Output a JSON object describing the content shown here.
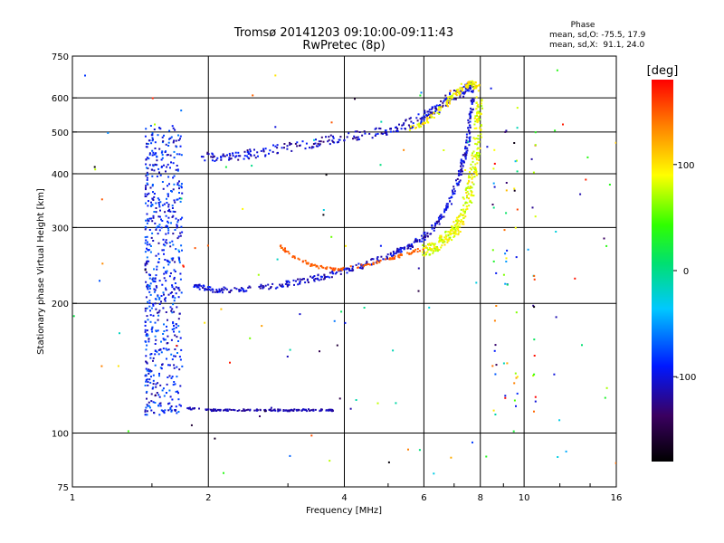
{
  "chart_data": {
    "type": "scatter",
    "title": "Tromsø 20141203 09:10:00-09:11:43",
    "subtitle": "RwPretec (8p)",
    "xlabel": "Frequency [MHz]",
    "ylabel": "Stationary phase Virtual Height [km]",
    "x_scale": "log",
    "y_scale": "log",
    "xlim": [
      1,
      16
    ],
    "ylim": [
      75,
      750
    ],
    "x_ticks": [
      1,
      2,
      4,
      6,
      8,
      10,
      16
    ],
    "x_tick_labels": [
      "1",
      "2",
      "4",
      "6",
      "8",
      "10",
      "16"
    ],
    "y_ticks": [
      75,
      100,
      200,
      300,
      400,
      500,
      600,
      750
    ],
    "y_tick_labels": [
      "75",
      "100",
      "200",
      "300",
      "400",
      "500",
      "600",
      "750"
    ],
    "x_gridlines": [
      2,
      4,
      6,
      8,
      10
    ],
    "y_gridlines": [
      100,
      200,
      300,
      400,
      500,
      600
    ],
    "grid": true,
    "stats": {
      "heading": "Phase",
      "line1": "mean, sd,O: -75.5, 17.9",
      "line2": "mean, sd,X:  91.1, 24.0"
    },
    "colorbar": {
      "label": "[deg]",
      "range": [
        -180,
        180
      ],
      "ticks": [
        100,
        0,
        -100
      ],
      "tick_labels": [
        "100",
        "0",
        "-100"
      ],
      "colormap": "rainbow"
    },
    "series_O_upper": {
      "x": [
        1.95,
        2.1,
        2.3,
        2.5,
        2.8,
        3.2,
        3.6,
        4.0,
        4.5,
        5.0,
        5.5,
        6.0,
        6.3,
        6.6,
        6.9,
        7.2,
        7.5,
        7.7
      ],
      "y": [
        440,
        435,
        440,
        445,
        455,
        465,
        475,
        485,
        495,
        505,
        520,
        540,
        560,
        580,
        600,
        615,
        630,
        640
      ],
      "phase": -110
    },
    "series_O_lower": {
      "x": [
        1.85,
        2.0,
        2.2,
        2.5,
        2.8,
        3.2,
        3.6,
        4.0,
        4.4,
        4.8,
        5.2,
        5.6,
        6.0,
        6.3,
        6.6,
        6.9,
        7.1,
        7.3,
        7.5,
        7.6,
        7.7
      ],
      "y": [
        222,
        215,
        215,
        217,
        220,
        225,
        231,
        238,
        245,
        253,
        262,
        272,
        285,
        300,
        320,
        350,
        380,
        420,
        470,
        530,
        600
      ],
      "phase": -105
    },
    "series_X_lower": {
      "x": [
        6.0,
        6.4,
        6.8,
        7.1,
        7.4,
        7.6,
        7.8,
        7.9,
        8.0
      ],
      "y": [
        265,
        272,
        285,
        300,
        330,
        370,
        430,
        500,
        600
      ],
      "phase": 85
    },
    "series_X_upper": {
      "x": [
        5.6,
        6.0,
        6.4,
        6.8,
        7.1,
        7.4,
        7.6,
        7.8,
        7.9
      ],
      "y": [
        505,
        525,
        555,
        590,
        615,
        640,
        650,
        645,
        630
      ],
      "phase": 95
    },
    "series_orange_arc": {
      "x": [
        2.85,
        3.0,
        3.2,
        3.4,
        3.6,
        3.8,
        4.0,
        4.4,
        4.8,
        5.2,
        5.6,
        6.0
      ],
      "y": [
        275,
        262,
        252,
        245,
        242,
        240,
        241,
        245,
        250,
        256,
        262,
        268
      ],
      "phase": 150
    },
    "series_Es_track": {
      "x": [
        1.8,
        1.9,
        2.0,
        2.2,
        2.4,
        2.6,
        2.8,
        3.0,
        3.2,
        3.4,
        3.6,
        3.8
      ],
      "y": [
        114,
        114,
        113,
        113,
        113,
        113,
        113,
        113,
        113,
        113,
        113,
        113
      ],
      "phase": -115
    },
    "series_spread_column": {
      "x_range": [
        1.45,
        1.75
      ],
      "y_range": [
        110,
        520
      ],
      "phase_range": [
        -120,
        -60
      ]
    }
  }
}
